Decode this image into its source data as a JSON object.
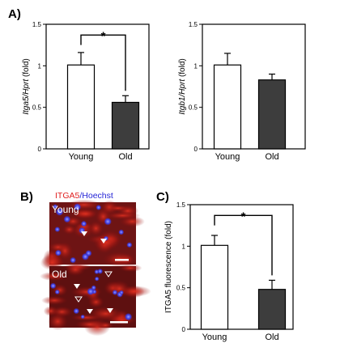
{
  "panels": {
    "a_letter": "A)",
    "b_letter": "B)",
    "c_letter": "C)"
  },
  "colors": {
    "young_bar": "#ffffff",
    "old_bar": "#3d3d3d",
    "itga5_stain": "#e02020",
    "hoechst_stain": "#2424d6"
  },
  "micrograph": {
    "title_red": "ITGA5",
    "title_sep": "/",
    "title_blue": "Hoechst",
    "young_label": "Young",
    "old_label": "Old"
  },
  "chart_data": [
    {
      "type": "bar",
      "panel": "A",
      "categories": [
        "Young",
        "Old"
      ],
      "values": [
        1.01,
        0.56
      ],
      "errors": [
        0.15,
        0.08
      ],
      "ylabel_italic": "Itga5/Hprt",
      "ylabel_plain": " (fold)",
      "ylim": [
        0,
        1.5
      ],
      "yticks": [
        "0",
        "0.5",
        "1",
        "1.5"
      ],
      "significance": "*",
      "bar_colors": [
        "#ffffff",
        "#3d3d3d"
      ]
    },
    {
      "type": "bar",
      "panel": "A",
      "categories": [
        "Young",
        "Old"
      ],
      "values": [
        1.01,
        0.83
      ],
      "errors": [
        0.14,
        0.07
      ],
      "ylabel_italic": "Itgb1/Hprt",
      "ylabel_plain": " (fold)",
      "ylim": [
        0,
        1.5
      ],
      "yticks": [
        "0",
        "0.5",
        "1",
        "1.5"
      ],
      "significance": "",
      "bar_colors": [
        "#ffffff",
        "#3d3d3d"
      ]
    },
    {
      "type": "bar",
      "panel": "C",
      "categories": [
        "Young",
        "Old"
      ],
      "values": [
        1.01,
        0.48
      ],
      "errors": [
        0.12,
        0.11
      ],
      "ylabel_italic": "",
      "ylabel_plain": "ITGA5 fluorescence (fold)",
      "ylim": [
        0,
        1.5
      ],
      "yticks": [
        "0",
        "0.5",
        "1",
        "1.5"
      ],
      "significance": "*",
      "bar_colors": [
        "#ffffff",
        "#3d3d3d"
      ]
    }
  ]
}
